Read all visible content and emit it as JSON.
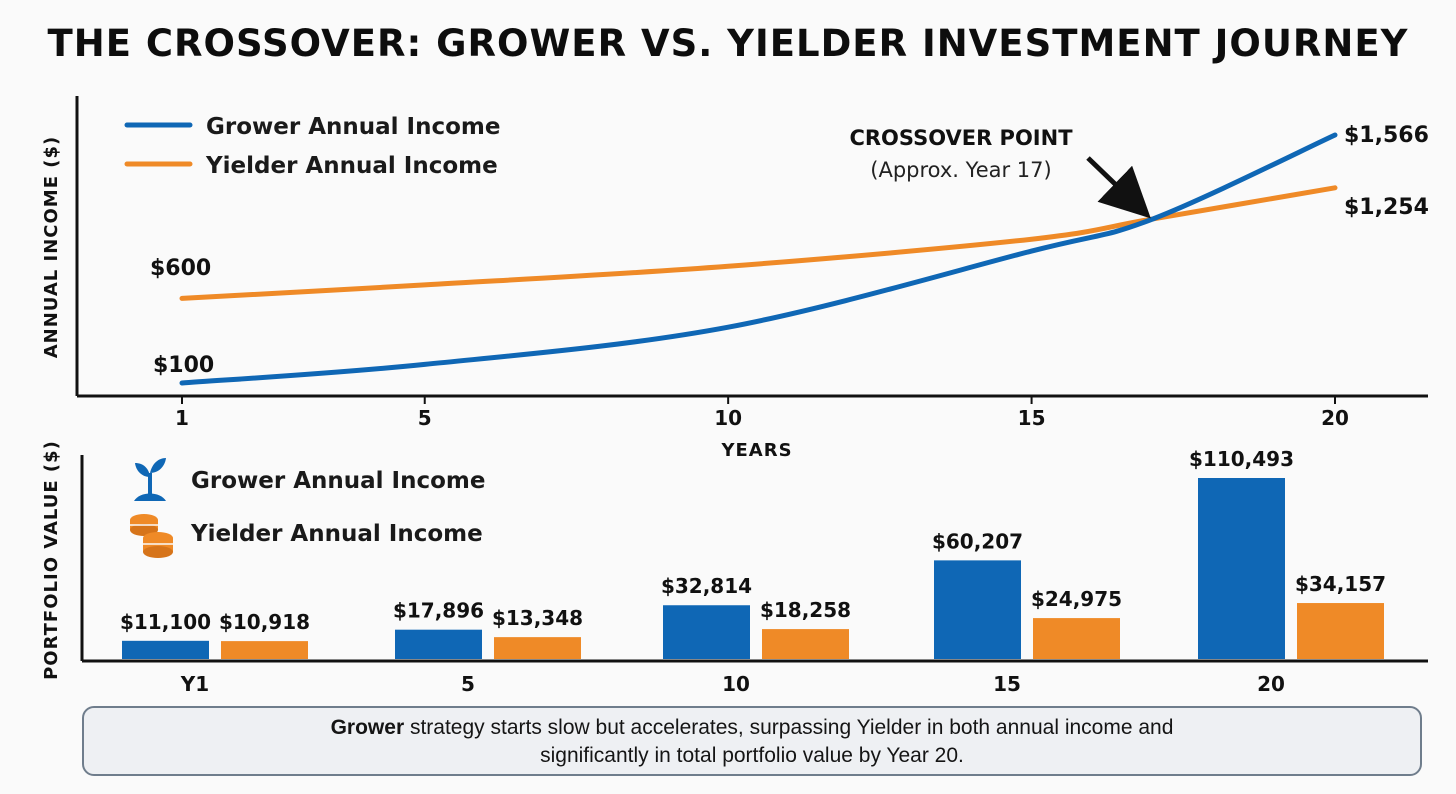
{
  "title": "THE CROSSOVER: GROWER VS. YIELDER INVESTMENT JOURNEY",
  "colors": {
    "grower": "#0f67b5",
    "yielder": "#ef8a27"
  },
  "annotation": {
    "line1": "CROSSOVER POINT",
    "line2": "(Approx. Year 17)"
  },
  "footer": {
    "bold": "Grower",
    "line1_rest": " strategy starts slow but accelerates, surpassing Yielder in both annual income and",
    "line2": "significantly in total portfolio value by Year 20."
  },
  "chart_data": [
    {
      "type": "line",
      "xlabel": "YEARS",
      "ylabel": "ANNUAL INCOME ($)",
      "x_ticks": [
        "1",
        "5",
        "10",
        "15",
        "20"
      ],
      "xlim": [
        1,
        20
      ],
      "ylim": [
        100,
        1566
      ],
      "series": [
        {
          "name": "Grower Annual Income",
          "color": "#0f67b5",
          "x": [
            1,
            5,
            10,
            15,
            17,
            20
          ],
          "values": [
            100,
            210,
            430,
            880,
            1070,
            1566
          ],
          "start_label": "$100",
          "end_label": "$1,566"
        },
        {
          "name": "Yielder Annual Income",
          "color": "#ef8a27",
          "x": [
            1,
            5,
            10,
            15,
            17,
            20
          ],
          "values": [
            600,
            680,
            790,
            950,
            1070,
            1254
          ],
          "start_label": "$600",
          "end_label": "$1,254"
        }
      ],
      "annotations": [
        {
          "x": 17,
          "text": "CROSSOVER POINT (Approx. Year 17)"
        }
      ]
    },
    {
      "type": "bar",
      "ylabel": "PORTFOLIO VALUE ($)",
      "categories": [
        "Y1",
        "5",
        "10",
        "15",
        "20"
      ],
      "ylim": [
        0,
        124000
      ],
      "series": [
        {
          "name": "Grower Annual Income",
          "color": "#0f67b5",
          "icon": "plant-sprout-icon",
          "values": [
            11100,
            17896,
            32814,
            60207,
            110493
          ],
          "labels": [
            "$11,100",
            "$17,896",
            "$32,814",
            "$60,207",
            "$110,493"
          ]
        },
        {
          "name": "Yielder Annual Income",
          "color": "#ef8a27",
          "icon": "coin-stack-icon",
          "values": [
            10918,
            13348,
            18258,
            24975,
            34157
          ],
          "labels": [
            "$10,918",
            "$13,348",
            "$18,258",
            "$24,975",
            "$34,157"
          ]
        }
      ]
    }
  ]
}
